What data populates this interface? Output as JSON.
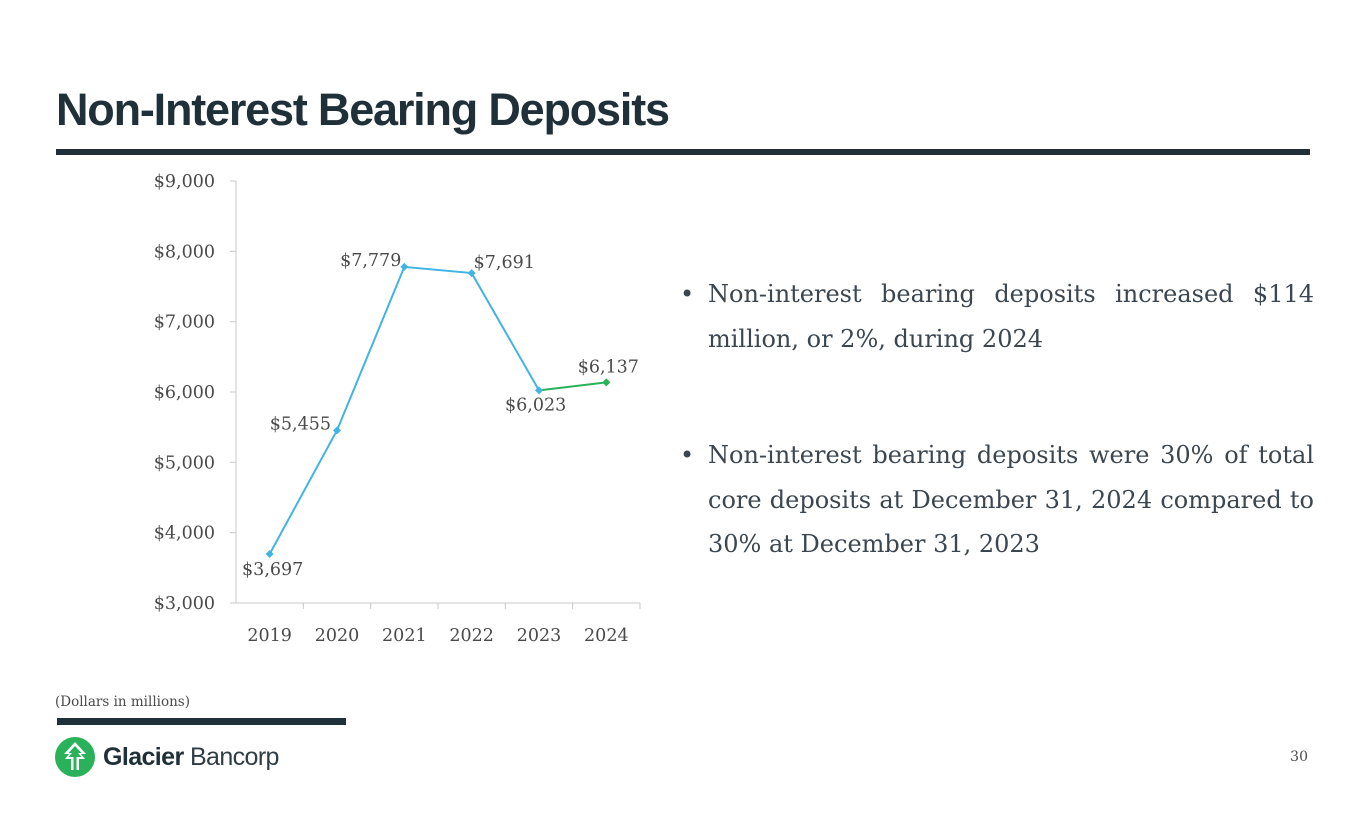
{
  "slide": {
    "title": "Non-Interest Bearing Deposits",
    "footnote": "(Dollars in millions)",
    "page_number": "30"
  },
  "brand": {
    "name_bold": "Glacier",
    "name_light": "Bancorp",
    "logo_icon": "glacier-mountain-circle-icon",
    "color_primary": "#1f3038",
    "color_green": "#2ab25a"
  },
  "bullets": [
    {
      "text": "Non-interest bearing deposits increased $114 million, or 2%, during 2024"
    },
    {
      "text": "Non-interest bearing deposits were 30% of total core deposits at December 31, 2024 compared to 30% at December 31, 2023"
    }
  ],
  "chart_data": {
    "type": "line",
    "categories": [
      "2019",
      "2020",
      "2021",
      "2022",
      "2023",
      "2024"
    ],
    "values": [
      3697,
      5455,
      7779,
      7691,
      6023,
      6137
    ],
    "data_labels": [
      "$3,697",
      "$5,455",
      "$7,779",
      "$7,691",
      "$6,023",
      "$6,137"
    ],
    "ylim": [
      3000,
      9000
    ],
    "yticks": [
      3000,
      4000,
      5000,
      6000,
      7000,
      8000,
      9000
    ],
    "ytick_labels": [
      "$3,000",
      "$4,000",
      "$5,000",
      "$6,000",
      "$7,000",
      "$8,000",
      "$9,000"
    ],
    "colors": {
      "line": "#41b4e3",
      "last_segment": "#2ab25a",
      "axis": "#c8c8c8"
    },
    "grid": false,
    "legend": "none"
  }
}
